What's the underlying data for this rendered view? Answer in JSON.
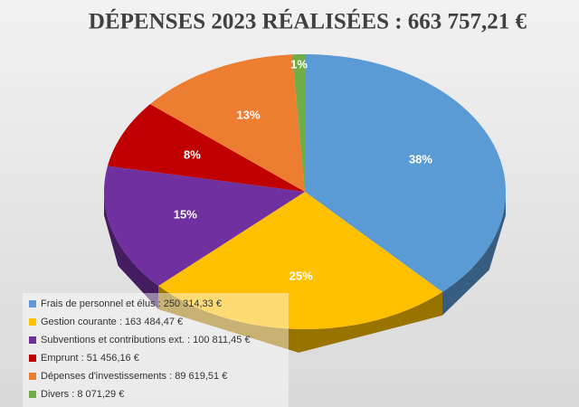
{
  "chart_data": {
    "type": "pie",
    "title": "DÉPENSES 2023 RÉALISÉES : 663 757,21 €",
    "categories": [
      "Frais de personnel et élus : 250 314,33 €",
      "Gestion courante : 163 484,47 €",
      "Subventions et contributions ext. : 100 811,45 €",
      "Emprunt : 51 456,16 €",
      "Dépenses d'investissements : 89 619,51 €",
      "Divers : 8 071,29 €"
    ],
    "values": [
      38,
      25,
      15,
      8,
      13,
      1
    ],
    "value_labels": [
      "38%",
      "25%",
      "15%",
      "8%",
      "13%",
      "1%"
    ],
    "colors": [
      "#5b9bd5",
      "#ffc000",
      "#7030a0",
      "#c00000",
      "#ed7d31",
      "#70ad47"
    ],
    "legend": "bottom-left"
  }
}
